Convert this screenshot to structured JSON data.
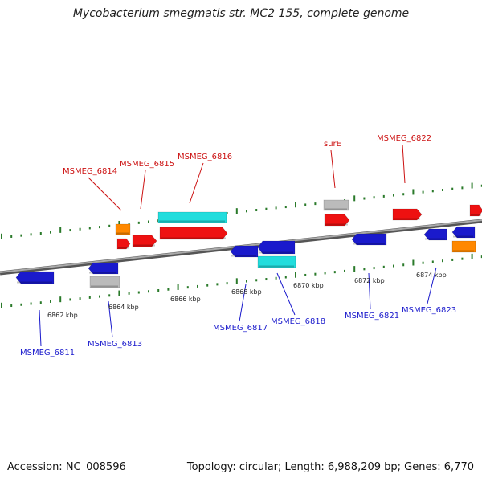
{
  "title": "Mycobacterium smegmatis str. MC2 155, complete genome",
  "footer": {
    "accession": "Accession: NC_008596",
    "summary": "Topology: circular; Length: 6,988,209 bp; Genes: 6,770"
  },
  "colors": {
    "backbone": "#888888",
    "tick": "#2a7a2a",
    "gene_red": "#ee1111",
    "gene_blue": "#1a1acc",
    "gene_cyan": "#22dddd",
    "gene_orange": "#ff8800",
    "gene_gray": "#bbbbbb",
    "label_red": "#cc1111",
    "label_blue": "#1a1acc"
  },
  "scale_labels": [
    "6862 kbp",
    "6864 kbp",
    "6866 kbp",
    "6868 kbp",
    "6870 kbp",
    "6872 kbp",
    "6874 kbp"
  ],
  "forward_labels": [
    "MSMEG_6814",
    "MSMEG_6815",
    "MSMEG_6816",
    "surE",
    "MSMEG_6822"
  ],
  "reverse_labels": [
    "MSMEG_6811",
    "MSMEG_6813",
    "MSMEG_6817",
    "MSMEG_6818",
    "MSMEG_6821",
    "MSMEG_6823"
  ]
}
